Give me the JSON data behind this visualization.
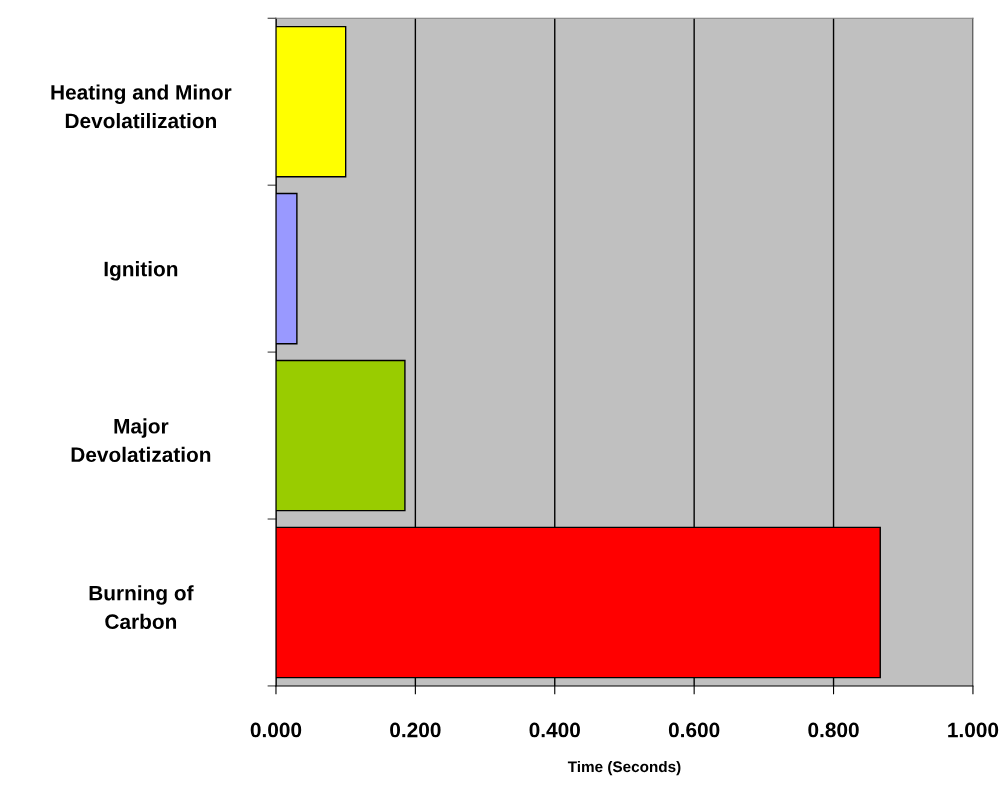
{
  "chart_data": {
    "type": "bar",
    "orientation": "horizontal",
    "xlabel": "Time (Seconds)",
    "categories": [
      "Heating and Minor\nDevolatilization",
      "Ignition",
      "Major\nDevolatization",
      "Burning of\nCarbon"
    ],
    "values": [
      0.1,
      0.03,
      0.185,
      0.867
    ],
    "colors": [
      "#ffff00",
      "#9999ff",
      "#99cc00",
      "#ff0000"
    ],
    "xlim": [
      0,
      1
    ],
    "xticks": [
      {
        "value": 0,
        "label": "0.000"
      },
      {
        "value": 0.2,
        "label": "0.200"
      },
      {
        "value": 0.4,
        "label": "0.400"
      },
      {
        "value": 0.6,
        "label": "0.600"
      },
      {
        "value": 0.8,
        "label": "0.800"
      },
      {
        "value": 1,
        "label": "1.000"
      }
    ],
    "grid": "x",
    "legend": false
  }
}
